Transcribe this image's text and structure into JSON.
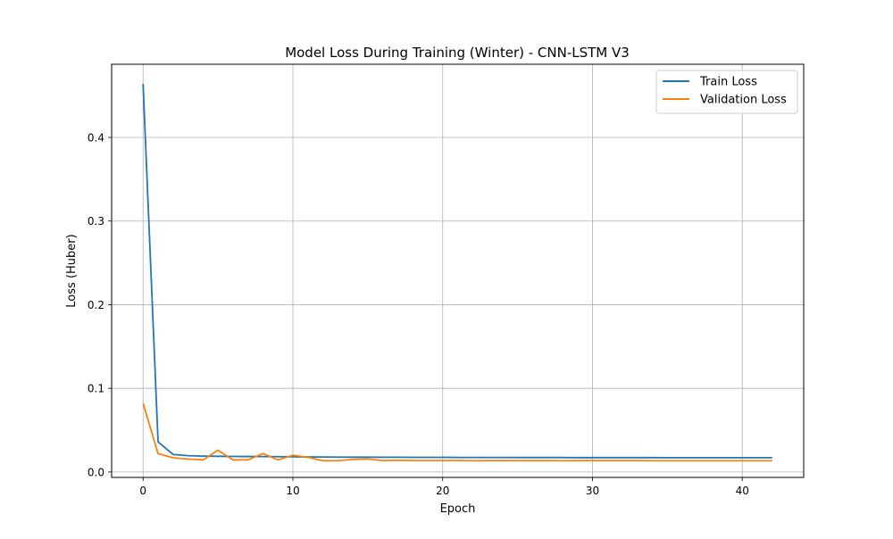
{
  "chart_data": {
    "type": "line",
    "title": "Model Loss During Training (Winter) - CNN-LSTM V3",
    "xlabel": "Epoch",
    "ylabel": "Loss (Huber)",
    "xlim": [
      -2.1,
      44.1
    ],
    "ylim": [
      -0.0065,
      0.4875
    ],
    "xticks": [
      0,
      10,
      20,
      30,
      40
    ],
    "yticks": [
      0.0,
      0.1,
      0.2,
      0.3,
      0.4
    ],
    "xtick_labels": [
      "0",
      "10",
      "20",
      "30",
      "40"
    ],
    "ytick_labels": [
      "0.0",
      "0.1",
      "0.2",
      "0.3",
      "0.4"
    ],
    "grid": true,
    "legend": {
      "placement": "top-right"
    },
    "x": [
      0,
      1,
      2,
      3,
      4,
      5,
      6,
      7,
      8,
      9,
      10,
      11,
      12,
      13,
      14,
      15,
      16,
      17,
      18,
      19,
      20,
      21,
      22,
      23,
      24,
      25,
      26,
      27,
      28,
      29,
      30,
      31,
      32,
      33,
      34,
      35,
      36,
      37,
      38,
      39,
      40,
      41,
      42
    ],
    "series": [
      {
        "name": "Train Loss",
        "color": "#1f77b4",
        "values": [
          0.464,
          0.036,
          0.021,
          0.0195,
          0.019,
          0.0188,
          0.0186,
          0.0185,
          0.0184,
          0.0183,
          0.0182,
          0.018,
          0.0179,
          0.0178,
          0.0177,
          0.0177,
          0.0176,
          0.0176,
          0.0175,
          0.0175,
          0.0175,
          0.0174,
          0.0174,
          0.0174,
          0.0174,
          0.0173,
          0.0173,
          0.0173,
          0.0173,
          0.0172,
          0.0172,
          0.0172,
          0.0172,
          0.0172,
          0.0172,
          0.0171,
          0.0171,
          0.0171,
          0.0171,
          0.0171,
          0.0171,
          0.0171,
          0.0171
        ]
      },
      {
        "name": "Validation Loss",
        "color": "#ff7f0e",
        "values": [
          0.082,
          0.022,
          0.017,
          0.0155,
          0.0145,
          0.026,
          0.0145,
          0.0145,
          0.022,
          0.0145,
          0.02,
          0.0175,
          0.0135,
          0.0135,
          0.015,
          0.0155,
          0.0138,
          0.014,
          0.0138,
          0.0138,
          0.0138,
          0.0138,
          0.0135,
          0.0136,
          0.0136,
          0.0136,
          0.0136,
          0.0136,
          0.0135,
          0.0136,
          0.0136,
          0.0136,
          0.0136,
          0.0136,
          0.0135,
          0.0135,
          0.0135,
          0.0135,
          0.0135,
          0.0135,
          0.0135,
          0.0135,
          0.0135
        ]
      }
    ]
  }
}
